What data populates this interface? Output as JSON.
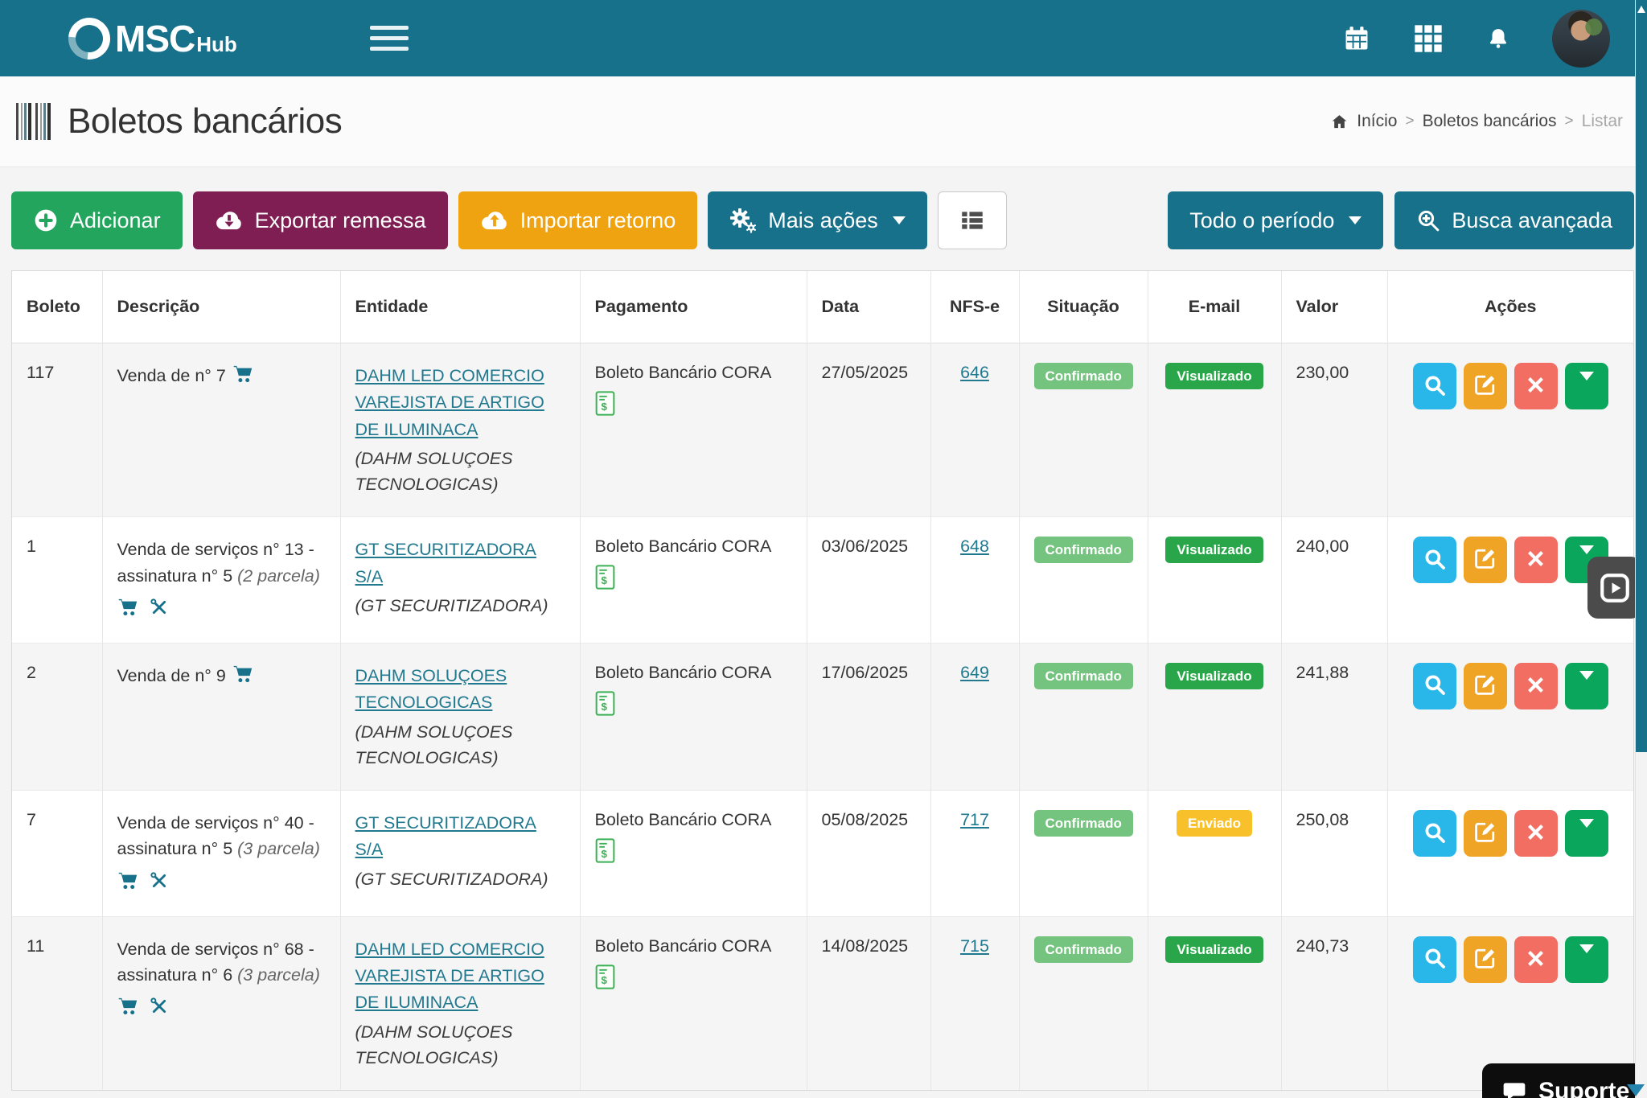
{
  "app": {
    "logo_main": "MSC",
    "logo_sub": "Hub"
  },
  "page_title": "Boletos bancários",
  "breadcrumb": {
    "home": "Início",
    "section": "Boletos bancários",
    "current": "Listar",
    "sep": ">"
  },
  "toolbar": {
    "add_label": "Adicionar",
    "export_label": "Exportar remessa",
    "import_label": "Importar retorno",
    "more_label": "Mais ações",
    "period_label": "Todo o período",
    "search_label": "Busca avançada"
  },
  "support_label": "Suporte",
  "table": {
    "headers": {
      "boleto": "Boleto",
      "descricao": "Descrição",
      "entidade": "Entidade",
      "pagamento": "Pagamento",
      "data": "Data",
      "nfse": "NFS-e",
      "situacao": "Situação",
      "email": "E-mail",
      "valor": "Valor",
      "acoes": "Ações"
    },
    "rows": [
      {
        "boleto": "117",
        "descricao": "Venda de n° 7",
        "parcela": "",
        "icons": [
          "cart"
        ],
        "icons_inline": true,
        "entidade_link": "DAHM LED COMERCIO VAREJISTA DE ARTIGO DE ILUMINACA",
        "entidade_sub": "(DAHM SOLUÇOES TECNOLOGICAS)",
        "pagamento": "Boleto Bancário CORA",
        "data": "27/05/2025",
        "nfse": "646",
        "situacao": "Confirmado",
        "email": "Visualizado",
        "valor": "230,00"
      },
      {
        "boleto": "1",
        "descricao": "Venda de serviços n° 13 - assinatura n° 5",
        "parcela": "(2 parcela)",
        "icons": [
          "cart",
          "tools"
        ],
        "icons_inline": false,
        "entidade_link": "GT SECURITIZADORA S/A",
        "entidade_sub": "(GT SECURITIZADORA)",
        "pagamento": "Boleto Bancário CORA",
        "data": "03/06/2025",
        "nfse": "648",
        "situacao": "Confirmado",
        "email": "Visualizado",
        "valor": "240,00"
      },
      {
        "boleto": "2",
        "descricao": "Venda de n° 9",
        "parcela": "",
        "icons": [
          "cart"
        ],
        "icons_inline": true,
        "entidade_link": "DAHM SOLUÇOES TECNOLOGICAS",
        "entidade_sub": "(DAHM SOLUÇOES TECNOLOGICAS)",
        "pagamento": "Boleto Bancário CORA",
        "data": "17/06/2025",
        "nfse": "649",
        "situacao": "Confirmado",
        "email": "Visualizado",
        "valor": "241,88"
      },
      {
        "boleto": "7",
        "descricao": "Venda de serviços n° 40 - assinatura n° 5",
        "parcela": "(3 parcela)",
        "icons": [
          "cart",
          "tools"
        ],
        "icons_inline": false,
        "entidade_link": "GT SECURITIZADORA S/A",
        "entidade_sub": "(GT SECURITIZADORA)",
        "pagamento": "Boleto Bancário CORA",
        "data": "05/08/2025",
        "nfse": "717",
        "situacao": "Confirmado",
        "email": "Enviado",
        "valor": "250,08"
      },
      {
        "boleto": "11",
        "descricao": "Venda de serviços n° 68 - assinatura n° 6",
        "parcela": "(3 parcela)",
        "icons": [
          "cart",
          "tools"
        ],
        "icons_inline": false,
        "entidade_link": "DAHM LED COMERCIO VAREJISTA DE ARTIGO DE ILUMINACA",
        "entidade_sub": "(DAHM SOLUÇOES TECNOLOGICAS)",
        "pagamento": "Boleto Bancário CORA",
        "data": "14/08/2025",
        "nfse": "715",
        "situacao": "Confirmado",
        "email": "Visualizado",
        "valor": "240,73"
      }
    ]
  },
  "badge_colors": {
    "Confirmado": "#74c37e",
    "Visualizado": "#2aa64a",
    "Enviado": "#f8c12c"
  },
  "action_buttons": [
    {
      "icon": "search-icon",
      "color": "#29b6e8"
    },
    {
      "icon": "edit-icon",
      "color": "#f0a425"
    },
    {
      "icon": "delete-icon",
      "color": "#f26e62"
    },
    {
      "icon": "caret-down-icon",
      "color": "#09a65c"
    }
  ],
  "colors": {
    "header_teal": "#17718a",
    "add_green": "#23a55e",
    "export_maroon": "#7e1e52",
    "import_orange": "#f0a311",
    "link_teal": "#20798f",
    "invoice_green": "#3cb054"
  }
}
